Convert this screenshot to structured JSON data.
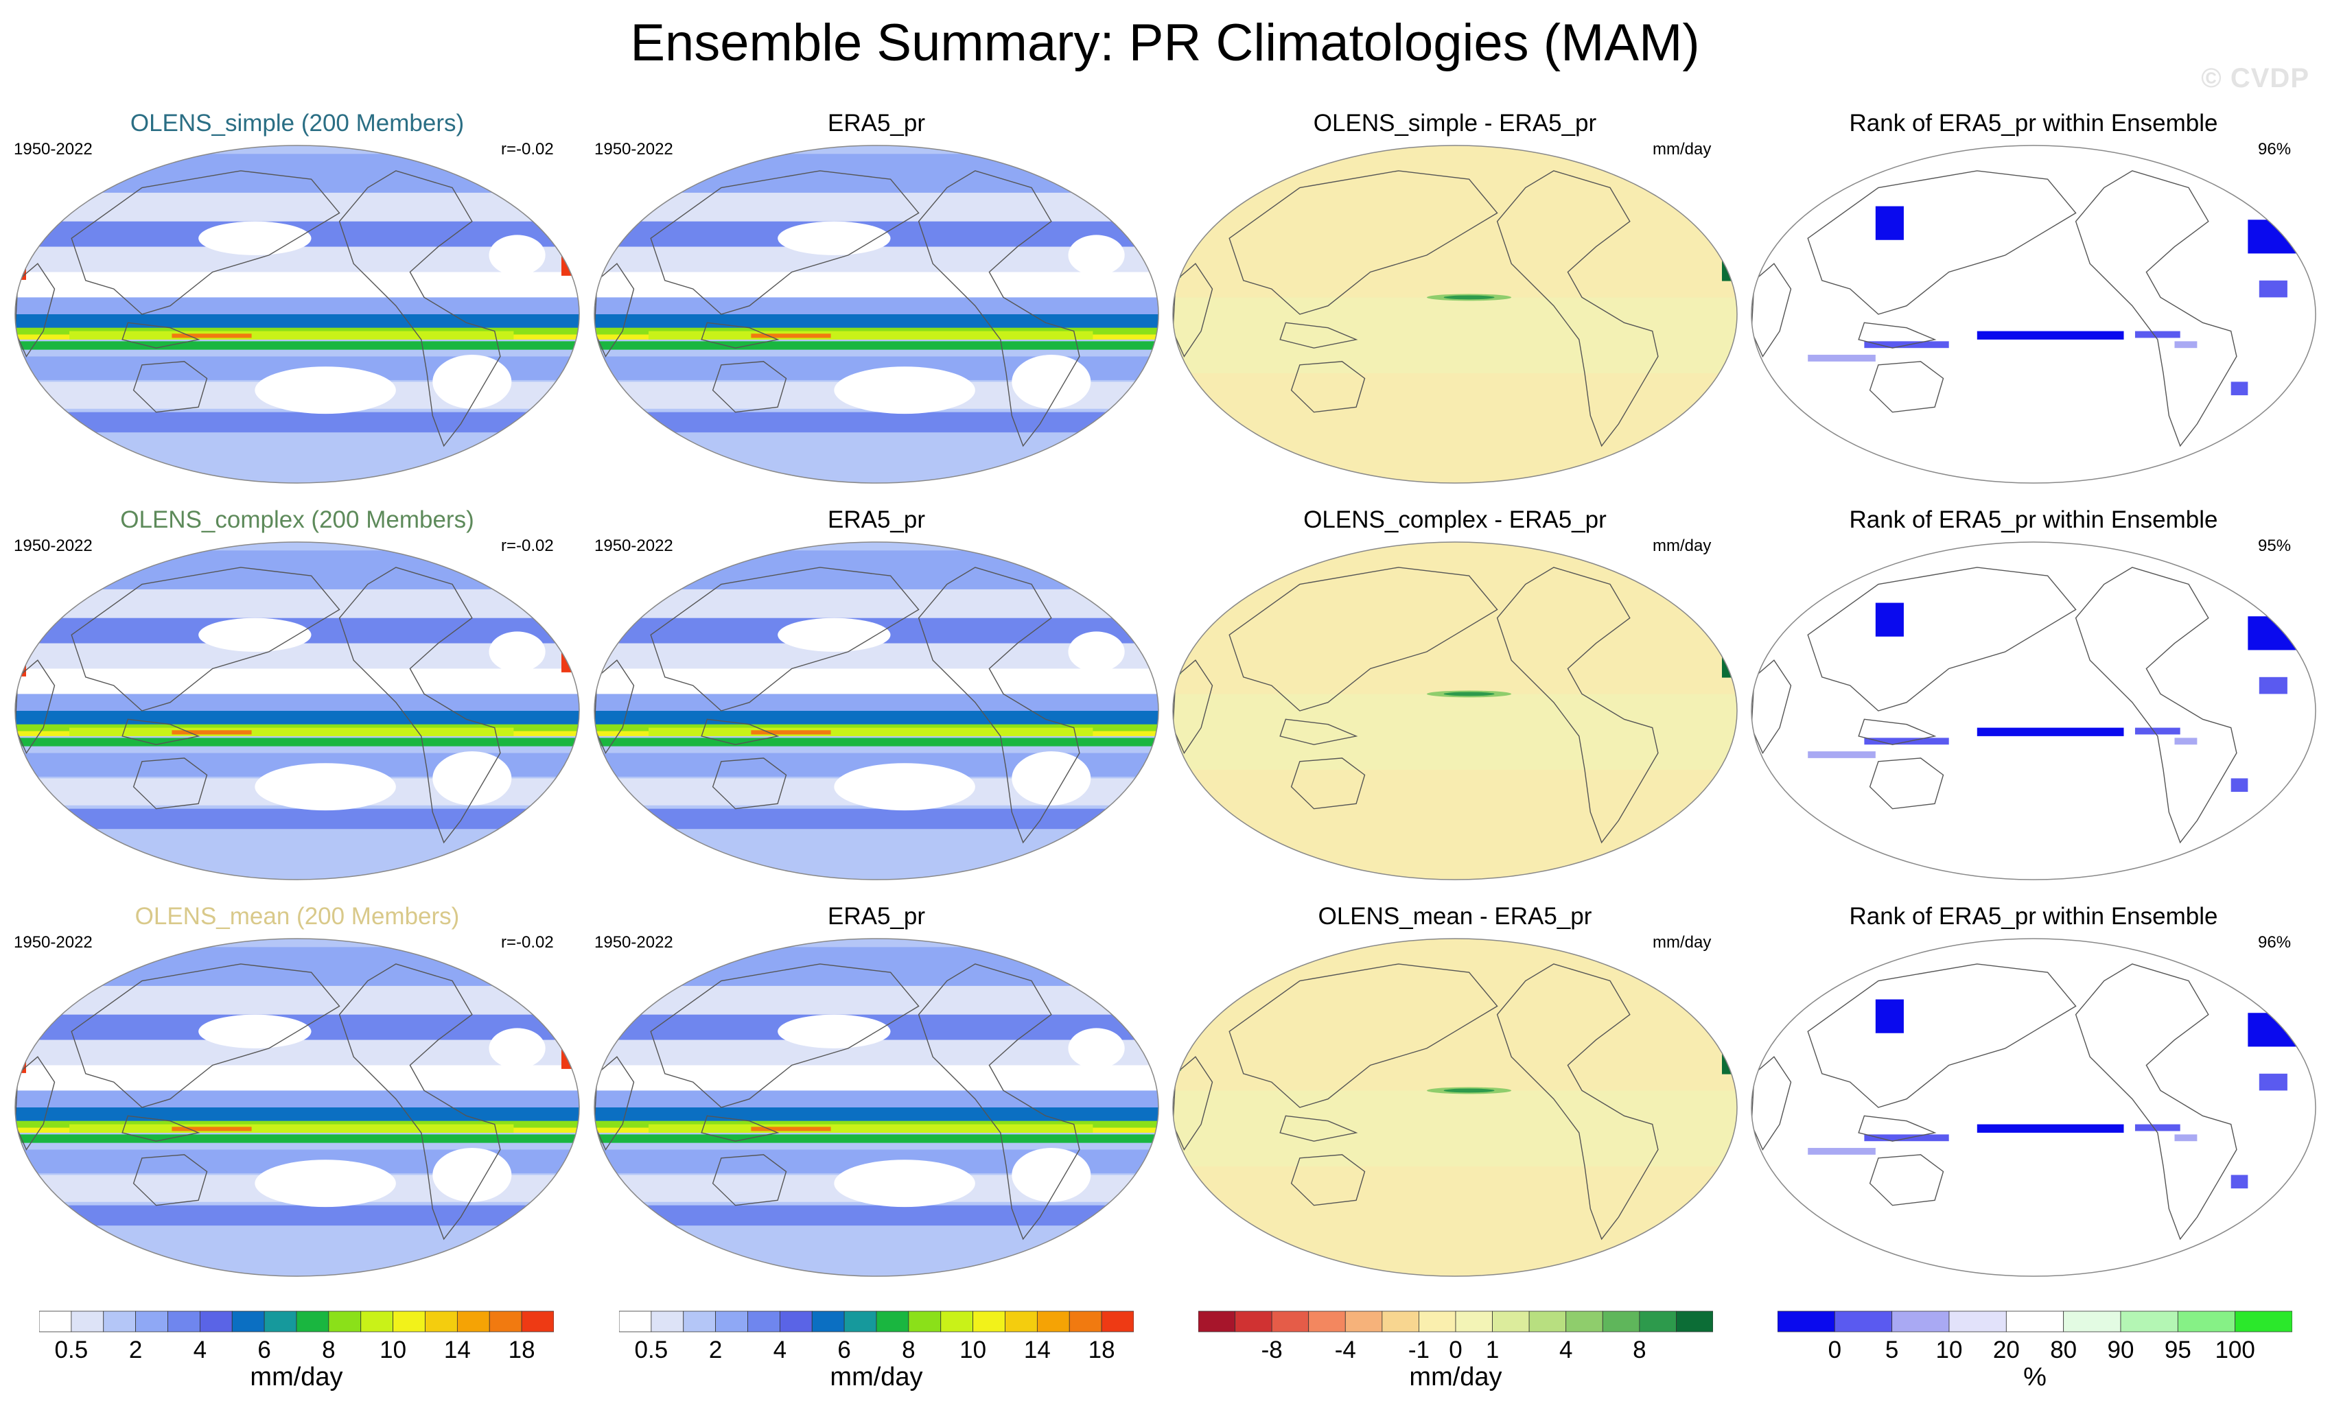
{
  "title": "Ensemble Summary: PR Climatologies (MAM)",
  "watermark": "© CVDP",
  "rows": [
    {
      "model_title": "OLENS_simple (200 Members)",
      "model_color": "#2a6e84",
      "period": "1950-2022",
      "corr": "r=-0.02",
      "obs_title": "ERA5_pr",
      "obs_period": "1950-2022",
      "diff_title": "OLENS_simple - ERA5_pr",
      "diff_unit": "mm/day",
      "rank_title": "Rank of ERA5_pr within Ensemble",
      "rank_pct": "96%"
    },
    {
      "model_title": "OLENS_complex (200 Members)",
      "model_color": "#5d8a5a",
      "period": "1950-2022",
      "corr": "r=-0.02",
      "obs_title": "ERA5_pr",
      "obs_period": "1950-2022",
      "diff_title": "OLENS_complex - ERA5_pr",
      "diff_unit": "mm/day",
      "rank_title": "Rank of ERA5_pr within Ensemble",
      "rank_pct": "95%"
    },
    {
      "model_title": "OLENS_mean (200 Members)",
      "model_color": "#d9c98a",
      "period": "1950-2022",
      "corr": "r=-0.02",
      "obs_title": "ERA5_pr",
      "obs_period": "1950-2022",
      "diff_title": "OLENS_mean - ERA5_pr",
      "diff_unit": "mm/day",
      "rank_title": "Rank of ERA5_pr within Ensemble",
      "rank_pct": "96%"
    }
  ],
  "chart_data": [
    {
      "type": "heatmap",
      "name": "precipitation climatology colorbar",
      "unit": "mm/day",
      "colors": [
        "#ffffff",
        "#dde3f7",
        "#b4c6f7",
        "#8fa8f5",
        "#6f86ee",
        "#5a64e6",
        "#0b6fc2",
        "#16999c",
        "#1ab640",
        "#8be019",
        "#c9f218",
        "#f2f21a",
        "#f4cd0e",
        "#f5a305",
        "#f17a10",
        "#ee3a14"
      ],
      "tick_labels": [
        "0.5",
        "2",
        "4",
        "6",
        "8",
        "10",
        "14",
        "18"
      ]
    },
    {
      "type": "heatmap",
      "name": "difference colorbar",
      "unit": "mm/day",
      "colors": [
        "#a7152b",
        "#d03232",
        "#e55c48",
        "#f3875f",
        "#f6b27a",
        "#f8d690",
        "#faefae",
        "#f3f4b6",
        "#dcec9c",
        "#b8df80",
        "#8fcd6c",
        "#5fb65b",
        "#2d9a4c",
        "#0c6d36"
      ],
      "tick_labels": [
        "-8",
        "-4",
        "-1",
        "0",
        "1",
        "4",
        "8"
      ]
    },
    {
      "type": "heatmap",
      "name": "rank colorbar",
      "unit": "%",
      "colors": [
        "#0a0aee",
        "#5a5af0",
        "#a9a9f3",
        "#e2e2fa",
        "#ffffff",
        "#e3fbe3",
        "#b4f6b4",
        "#86f186",
        "#2be82b"
      ],
      "tick_labels": [
        "0",
        "5",
        "10",
        "20",
        "80",
        "90",
        "95",
        "100"
      ]
    }
  ]
}
